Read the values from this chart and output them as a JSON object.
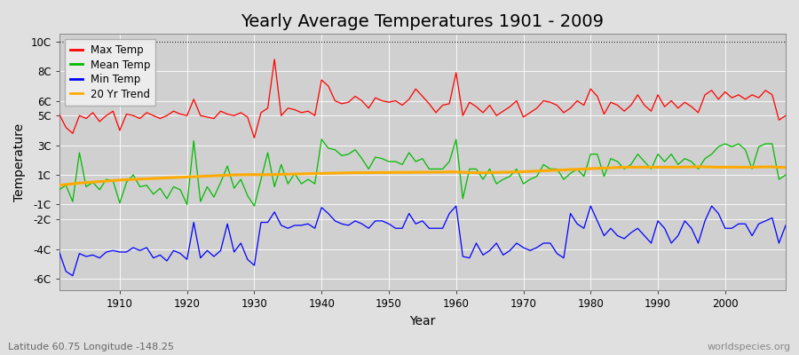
{
  "title": "Yearly Average Temperatures 1901 - 2009",
  "xlabel": "Year",
  "ylabel": "Temperature",
  "footnote_left": "Latitude 60.75 Longitude -148.25",
  "footnote_right": "worldspecies.org",
  "years": [
    1901,
    1902,
    1903,
    1904,
    1905,
    1906,
    1907,
    1908,
    1909,
    1910,
    1911,
    1912,
    1913,
    1914,
    1915,
    1916,
    1917,
    1918,
    1919,
    1920,
    1921,
    1922,
    1923,
    1924,
    1925,
    1926,
    1927,
    1928,
    1929,
    1930,
    1931,
    1932,
    1933,
    1934,
    1935,
    1936,
    1937,
    1938,
    1939,
    1940,
    1941,
    1942,
    1943,
    1944,
    1945,
    1946,
    1947,
    1948,
    1949,
    1950,
    1951,
    1952,
    1953,
    1954,
    1955,
    1956,
    1957,
    1958,
    1959,
    1960,
    1961,
    1962,
    1963,
    1964,
    1965,
    1966,
    1967,
    1968,
    1969,
    1970,
    1971,
    1972,
    1973,
    1974,
    1975,
    1976,
    1977,
    1978,
    1979,
    1980,
    1981,
    1982,
    1983,
    1984,
    1985,
    1986,
    1987,
    1988,
    1989,
    1990,
    1991,
    1992,
    1993,
    1994,
    1995,
    1996,
    1997,
    1998,
    1999,
    2000,
    2001,
    2002,
    2003,
    2004,
    2005,
    2006,
    2007,
    2008,
    2009
  ],
  "max_temp": [
    5.1,
    4.2,
    3.8,
    5.0,
    4.8,
    5.2,
    4.6,
    5.0,
    5.3,
    4.0,
    5.1,
    5.0,
    4.8,
    5.2,
    5.0,
    4.8,
    5.0,
    5.3,
    5.1,
    5.0,
    6.1,
    5.0,
    4.9,
    4.8,
    5.3,
    5.1,
    5.0,
    5.2,
    4.9,
    3.5,
    5.2,
    5.5,
    8.8,
    5.0,
    5.5,
    5.4,
    5.2,
    5.3,
    5.0,
    7.4,
    7.0,
    6.0,
    5.8,
    5.9,
    6.3,
    6.0,
    5.5,
    6.2,
    6.0,
    5.9,
    6.0,
    5.7,
    6.1,
    6.8,
    6.3,
    5.8,
    5.2,
    5.7,
    5.8,
    7.9,
    5.0,
    5.9,
    5.6,
    5.2,
    5.7,
    5.0,
    5.3,
    5.6,
    6.0,
    4.9,
    5.2,
    5.5,
    6.0,
    5.9,
    5.7,
    5.2,
    5.5,
    6.0,
    5.7,
    6.8,
    6.3,
    5.1,
    5.9,
    5.7,
    5.3,
    5.7,
    6.4,
    5.7,
    5.3,
    6.4,
    5.6,
    6.0,
    5.5,
    5.9,
    5.6,
    5.2,
    6.4,
    6.7,
    6.1,
    6.6,
    6.2,
    6.4,
    6.1,
    6.4,
    6.2,
    6.7,
    6.4,
    4.7,
    5.0
  ],
  "mean_temp": [
    0.0,
    0.3,
    -0.8,
    2.5,
    0.2,
    0.5,
    0.0,
    0.7,
    0.6,
    -0.9,
    0.5,
    1.0,
    0.2,
    0.3,
    -0.3,
    0.1,
    -0.6,
    0.2,
    0.0,
    -1.0,
    3.3,
    -0.8,
    0.2,
    -0.5,
    0.5,
    1.6,
    0.1,
    0.7,
    -0.4,
    -1.1,
    0.7,
    2.5,
    0.2,
    1.7,
    0.4,
    1.1,
    0.4,
    0.7,
    0.4,
    3.4,
    2.8,
    2.7,
    2.3,
    2.4,
    2.7,
    2.1,
    1.4,
    2.2,
    2.1,
    1.9,
    1.9,
    1.7,
    2.5,
    1.9,
    2.1,
    1.4,
    1.4,
    1.4,
    1.9,
    3.4,
    -0.6,
    1.4,
    1.4,
    0.7,
    1.4,
    0.4,
    0.7,
    0.9,
    1.4,
    0.4,
    0.7,
    0.9,
    1.7,
    1.4,
    1.4,
    0.7,
    1.1,
    1.4,
    0.9,
    2.4,
    2.4,
    0.9,
    2.1,
    1.9,
    1.4,
    1.7,
    2.4,
    1.9,
    1.4,
    2.4,
    1.9,
    2.4,
    1.7,
    2.1,
    1.9,
    1.4,
    2.1,
    2.4,
    2.9,
    3.1,
    2.9,
    3.1,
    2.7,
    1.4,
    2.9,
    3.1,
    3.1,
    0.7,
    1.0
  ],
  "min_temp": [
    -4.2,
    -5.5,
    -5.8,
    -4.3,
    -4.5,
    -4.4,
    -4.6,
    -4.2,
    -4.1,
    -4.2,
    -4.2,
    -3.9,
    -4.1,
    -3.9,
    -4.6,
    -4.4,
    -4.8,
    -4.1,
    -4.3,
    -4.7,
    -2.2,
    -4.6,
    -4.1,
    -4.5,
    -4.1,
    -2.3,
    -4.2,
    -3.6,
    -4.7,
    -5.1,
    -2.2,
    -2.2,
    -1.5,
    -2.4,
    -2.6,
    -2.4,
    -2.4,
    -2.3,
    -2.6,
    -1.2,
    -1.6,
    -2.1,
    -2.3,
    -2.4,
    -2.1,
    -2.3,
    -2.6,
    -2.1,
    -2.1,
    -2.3,
    -2.6,
    -2.6,
    -1.6,
    -2.3,
    -2.1,
    -2.6,
    -2.6,
    -2.6,
    -1.6,
    -1.1,
    -4.5,
    -4.6,
    -3.6,
    -4.4,
    -4.1,
    -3.6,
    -4.4,
    -4.1,
    -3.6,
    -3.9,
    -4.1,
    -3.9,
    -3.6,
    -3.6,
    -4.3,
    -4.6,
    -1.6,
    -2.3,
    -2.6,
    -1.1,
    -2.1,
    -3.1,
    -2.6,
    -3.1,
    -3.3,
    -2.9,
    -2.6,
    -3.1,
    -3.6,
    -2.1,
    -2.6,
    -3.6,
    -3.1,
    -2.1,
    -2.6,
    -3.6,
    -2.1,
    -1.1,
    -1.6,
    -2.6,
    -2.6,
    -2.3,
    -2.3,
    -3.1,
    -2.3,
    -2.1,
    -1.9,
    -3.6,
    -2.4
  ],
  "trend_years": [
    1901,
    1902,
    1903,
    1904,
    1905,
    1906,
    1907,
    1908,
    1909,
    1910,
    1911,
    1912,
    1913,
    1914,
    1915,
    1916,
    1917,
    1918,
    1919,
    1920,
    1921,
    1922,
    1923,
    1924,
    1925,
    1926,
    1927,
    1928,
    1929,
    1930,
    1931,
    1932,
    1933,
    1934,
    1935,
    1936,
    1937,
    1938,
    1939,
    1940,
    1941,
    1942,
    1943,
    1944,
    1945,
    1946,
    1947,
    1948,
    1949,
    1950,
    1951,
    1952,
    1953,
    1954,
    1955,
    1956,
    1957,
    1958,
    1959,
    1960,
    1961,
    1962,
    1963,
    1964,
    1965,
    1966,
    1967,
    1968,
    1969,
    1970,
    1971,
    1972,
    1973,
    1974,
    1975,
    1976,
    1977,
    1978,
    1979,
    1980,
    1981,
    1982,
    1983,
    1984,
    1985,
    1986,
    1987,
    1988,
    1989,
    1990,
    1991,
    1992,
    1993,
    1994,
    1995,
    1996,
    1997,
    1998,
    1999,
    2000,
    2001,
    2002,
    2003,
    2004,
    2005,
    2006,
    2007,
    2008,
    2009
  ],
  "trend": [
    0.3,
    0.35,
    0.4,
    0.45,
    0.48,
    0.52,
    0.55,
    0.58,
    0.62,
    0.65,
    0.68,
    0.7,
    0.72,
    0.74,
    0.76,
    0.78,
    0.8,
    0.82,
    0.84,
    0.86,
    0.88,
    0.9,
    0.92,
    0.94,
    0.96,
    0.98,
    1.0,
    1.01,
    1.02,
    1.02,
    1.02,
    1.02,
    1.03,
    1.04,
    1.05,
    1.06,
    1.07,
    1.08,
    1.09,
    1.1,
    1.11,
    1.12,
    1.13,
    1.14,
    1.15,
    1.15,
    1.15,
    1.16,
    1.16,
    1.16,
    1.17,
    1.17,
    1.17,
    1.18,
    1.18,
    1.18,
    1.19,
    1.19,
    1.2,
    1.2,
    1.18,
    1.16,
    1.15,
    1.15,
    1.16,
    1.17,
    1.18,
    1.19,
    1.2,
    1.22,
    1.24,
    1.26,
    1.28,
    1.3,
    1.32,
    1.34,
    1.36,
    1.38,
    1.4,
    1.42,
    1.44,
    1.46,
    1.48,
    1.5,
    1.52,
    1.52,
    1.52,
    1.52,
    1.52,
    1.52,
    1.52,
    1.52,
    1.52,
    1.53,
    1.54,
    1.55,
    1.54,
    1.53,
    1.52,
    1.52,
    1.52,
    1.52,
    1.52,
    1.52,
    1.53,
    1.54,
    1.54,
    1.52,
    1.5
  ],
  "max_color": "#ff0000",
  "mean_color": "#00bb00",
  "min_color": "#0000ff",
  "trend_color": "#ffaa00",
  "bg_color": "#e0e0e0",
  "plot_bg_color": "#d0d0d0",
  "grid_color": "#ffffff",
  "ylim": [
    -6.8,
    10.5
  ],
  "yticks": [
    -6,
    -4,
    -2,
    -1,
    1,
    3,
    5,
    6,
    8,
    10
  ],
  "ytick_labels": [
    "-6C",
    "-4C",
    "-2C",
    "-1C",
    "1C",
    "3C",
    "5C",
    "6C",
    "8C",
    "10C"
  ],
  "dotted_line_y": 10,
  "xlim": [
    1901,
    2009
  ],
  "xticks": [
    1910,
    1920,
    1930,
    1940,
    1950,
    1960,
    1970,
    1980,
    1990,
    2000
  ],
  "legend_labels": [
    "Max Temp",
    "Mean Temp",
    "Min Temp",
    "20 Yr Trend"
  ],
  "title_fontsize": 14
}
